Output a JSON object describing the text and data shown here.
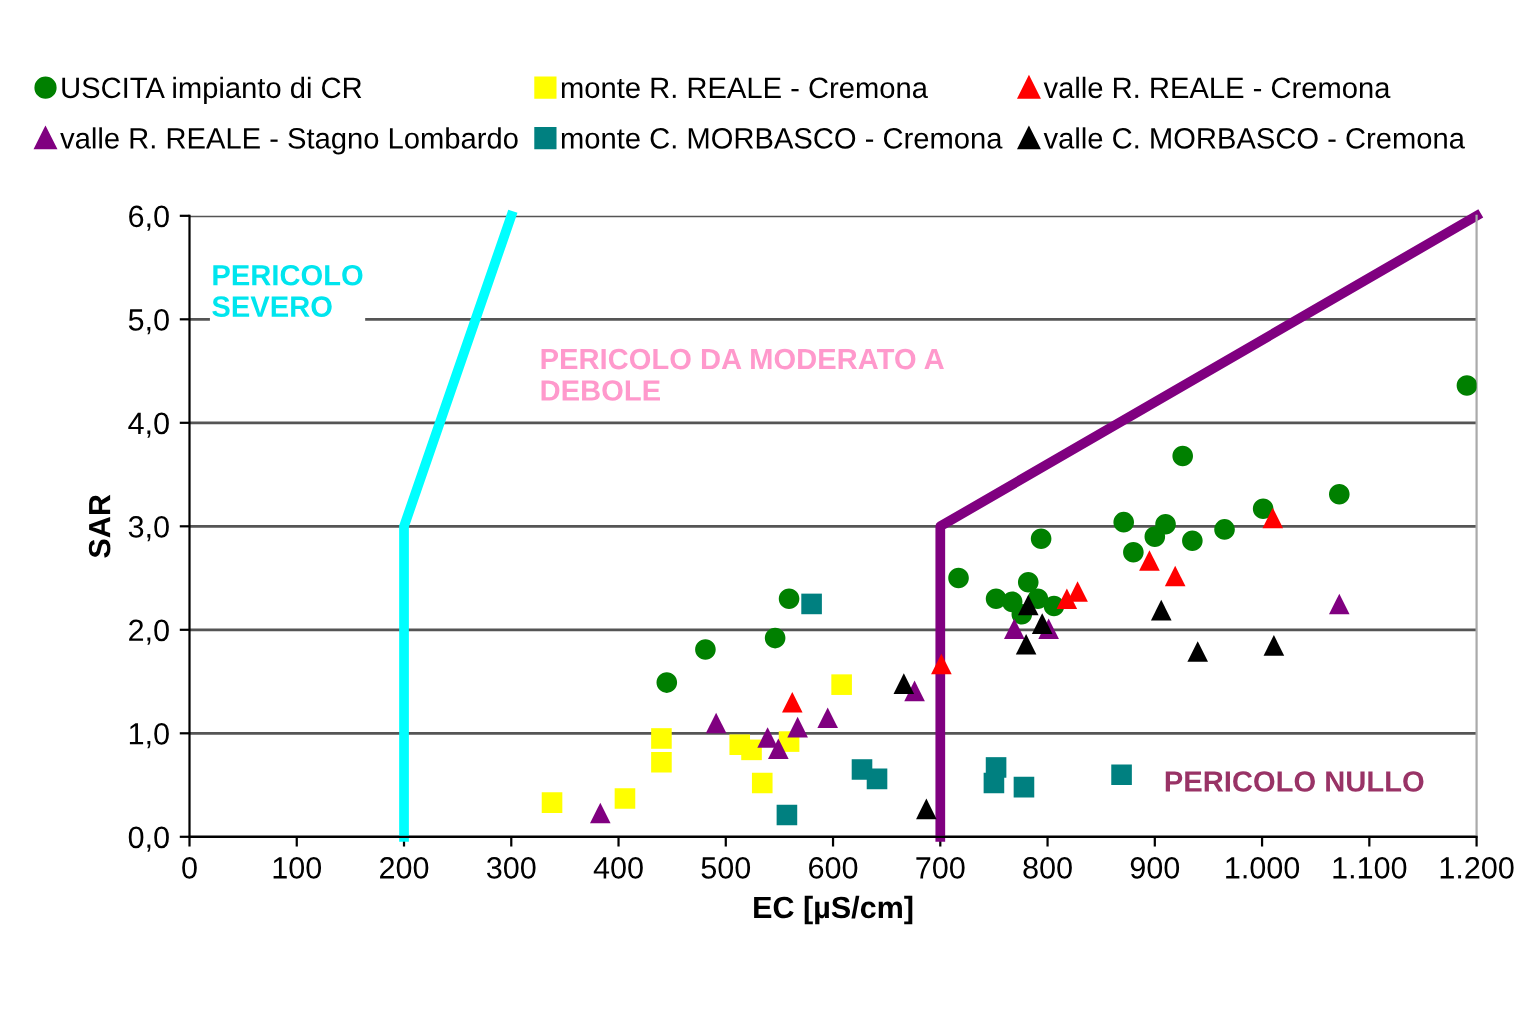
{
  "chart_data": {
    "type": "scatter",
    "xlabel": "EC [µS/cm]",
    "ylabel": "SAR",
    "xlim": [
      0,
      1200
    ],
    "ylim": [
      0,
      6
    ],
    "xticks": [
      0,
      100,
      200,
      300,
      400,
      500,
      600,
      700,
      800,
      900,
      {
        "value": 1000,
        "label": "1.000"
      },
      {
        "value": 1100,
        "label": "1.100"
      },
      {
        "value": 1200,
        "label": "1.200"
      }
    ],
    "yticks": [
      {
        "value": 0,
        "label": "0,0"
      },
      {
        "value": 1,
        "label": "1,0"
      },
      {
        "value": 2,
        "label": "2,0"
      },
      {
        "value": 3,
        "label": "3,0"
      },
      {
        "value": 4,
        "label": "4,0"
      },
      {
        "value": 5,
        "label": "5,0"
      },
      {
        "value": 6,
        "label": "6,0"
      }
    ],
    "grid": "y",
    "legend": "top",
    "series": [
      {
        "name": "USCITA impianto di CR",
        "color": "#008000",
        "marker": "circle",
        "x": [
          445,
          481,
          546,
          559,
          717,
          752,
          767,
          782,
          791,
          776,
          806,
          794,
          871,
          910,
          900,
          880,
          935,
          965,
          926,
          1001,
          1072,
          1191
        ],
        "values": [
          1.49,
          1.81,
          1.92,
          2.3,
          2.5,
          2.3,
          2.27,
          2.46,
          2.3,
          2.15,
          2.23,
          2.88,
          3.04,
          3.02,
          2.9,
          2.75,
          2.86,
          2.97,
          3.68,
          3.17,
          3.31,
          4.36
        ]
      },
      {
        "name": "monte R. REALE - Cremona",
        "color": "#ffff00",
        "marker": "square",
        "x": [
          338,
          406,
          440,
          440,
          513,
          524,
          534,
          559,
          608
        ],
        "values": [
          0.33,
          0.37,
          0.95,
          0.72,
          0.89,
          0.84,
          0.52,
          0.92,
          1.47
        ]
      },
      {
        "name": "valle R. REALE - Cremona",
        "color": "#ff0000",
        "marker": "triangle",
        "x": [
          562,
          701,
          818,
          828,
          895,
          919,
          1010
        ],
        "values": [
          1.3,
          1.67,
          2.3,
          2.37,
          2.67,
          2.52,
          3.08
        ]
      },
      {
        "name": "valle R. REALE - Stagno Lombardo",
        "color": "#800080",
        "marker": "triangle",
        "x": [
          383,
          491,
          539,
          549,
          567,
          595,
          676,
          769,
          801,
          1072
        ],
        "values": [
          0.23,
          1.1,
          0.96,
          0.85,
          1.06,
          1.15,
          1.41,
          2.01,
          2.01,
          2.25
        ]
      },
      {
        "name": "monte C. MORBASCO - Cremona",
        "color": "#008080",
        "marker": "square",
        "x": [
          557,
          580,
          627,
          641,
          750,
          752,
          778,
          869
        ],
        "values": [
          0.21,
          2.25,
          0.65,
          0.56,
          0.52,
          0.67,
          0.48,
          0.6
        ]
      },
      {
        "name": "valle C. MORBASCO - Cremona",
        "color": "#000000",
        "marker": "triangle",
        "x": [
          666,
          687,
          780,
          782,
          795,
          906,
          940,
          1011
        ],
        "values": [
          1.48,
          0.27,
          1.86,
          2.24,
          2.06,
          2.19,
          1.79,
          1.85
        ]
      },
      {
        "type": "line",
        "color": "#00ffff",
        "marker": "none",
        "x": [
          200,
          200,
          300
        ],
        "values": [
          0,
          3,
          6
        ]
      },
      {
        "type": "line",
        "color": "#800080",
        "marker": "none",
        "x": [
          700,
          700,
          1200
        ],
        "values": [
          0,
          3,
          6
        ]
      }
    ],
    "annotations": [
      "PERICOLO\nSEVERO",
      "PERICOLO DA MODERATO A\nDEBOLE",
      "PERICOLO NULLO"
    ]
  }
}
